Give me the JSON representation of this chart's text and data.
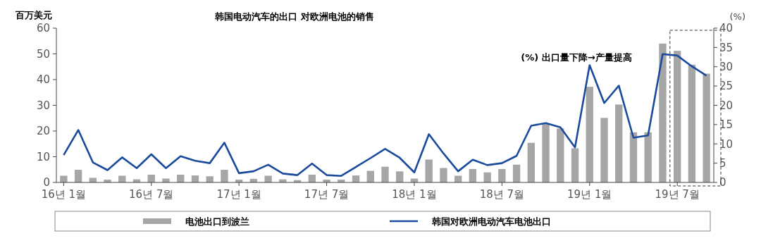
{
  "chart_data": {
    "type": "bar",
    "title": "韩国电动汽车的出口 对欧洲电池的销售",
    "ylabel": "百万美元",
    "y2label": "(%)",
    "annotations": [
      "(%) 出口量下降→产量提高"
    ],
    "categories": [
      "16년 1월",
      null,
      null,
      null,
      null,
      null,
      "16년 7월",
      null,
      null,
      null,
      null,
      null,
      "17년 1월",
      null,
      null,
      null,
      null,
      null,
      "17년 7월",
      null,
      null,
      null,
      null,
      null,
      "18년 1월",
      null,
      null,
      null,
      null,
      null,
      "18년 7월",
      null,
      null,
      null,
      null,
      null,
      "19년 1월",
      null,
      null,
      null,
      null,
      null,
      "19년 7월",
      null,
      null
    ],
    "series": [
      {
        "name": "电池出口到波兰",
        "color": "#a6a6a6",
        "values": [
          2.6,
          4.9,
          1.8,
          1.1,
          2.6,
          1.2,
          3.0,
          1.5,
          3.0,
          2.7,
          2.4,
          4.9,
          1.1,
          1.4,
          2.6,
          1.2,
          0.9,
          3.0,
          1.1,
          1.1,
          2.7,
          4.5,
          6.1,
          4.3,
          1.5,
          8.9,
          5.6,
          2.6,
          5.2,
          3.9,
          5.2,
          6.9,
          15.4,
          22.7,
          21.0,
          13.3,
          37.2,
          25.1,
          30.3,
          19.5,
          19.5,
          54.0,
          51.2,
          45.8,
          42.3
        ]
      },
      {
        "name": "韩国对欧洲电动汽车电池出口",
        "type": "line",
        "axis": "y2",
        "color": "#1a4a9c",
        "values": [
          7.1,
          13.6,
          5.2,
          3.2,
          6.5,
          3.7,
          7.3,
          3.7,
          6.8,
          5.6,
          5.0,
          10.3,
          2.4,
          2.9,
          4.6,
          2.3,
          1.9,
          4.9,
          1.9,
          1.7,
          4.0,
          6.3,
          8.7,
          6.4,
          2.6,
          12.5,
          7.5,
          2.9,
          5.9,
          4.5,
          5.0,
          6.9,
          14.7,
          15.4,
          14.3,
          9.1,
          30.4,
          20.6,
          25.1,
          11.6,
          12.2,
          33.3,
          32.9,
          30.1,
          27.7
        ]
      }
    ],
    "ylim": [
      0,
      60
    ],
    "yticks": [
      0,
      10,
      20,
      30,
      40,
      50,
      60
    ],
    "y2lim": [
      0,
      40
    ],
    "y2ticks": [
      0,
      5,
      10,
      15,
      20,
      25,
      30,
      35,
      40
    ],
    "grid": false,
    "legend": "bottom",
    "marker": "none",
    "line_style": "solid"
  }
}
